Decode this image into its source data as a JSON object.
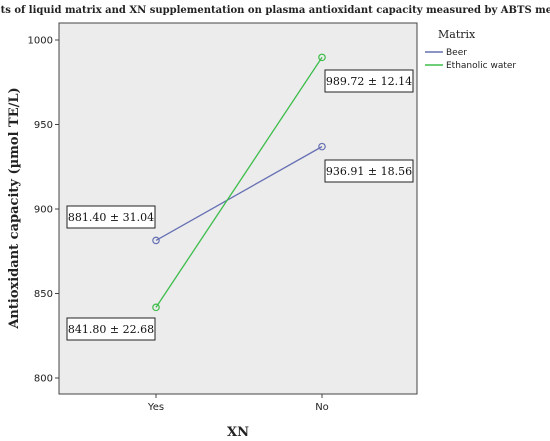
{
  "chart_data": {
    "type": "line",
    "title": "Effects of liquid matrix and XN supplementation on plasma antioxidant capacity measured by ABTS method",
    "xlabel": "XN",
    "ylabel": "Antioxidant capacity (µmol TE/L)",
    "categories": [
      "Yes",
      "No"
    ],
    "ylim": [
      790,
      1015
    ],
    "yticks": [
      800,
      850,
      900,
      950,
      1000
    ],
    "grid": false,
    "legend": {
      "title": "Matrix",
      "placement": "right"
    },
    "series": [
      {
        "name": "Beer",
        "color": "#6670b3",
        "values": [
          881.4,
          936.91
        ],
        "labels": [
          "881.40 ± 31.04",
          "936.91 ± 18.56"
        ]
      },
      {
        "name": "Ethanolic water",
        "color": "#3dbd4a",
        "values": [
          841.8,
          989.72
        ],
        "labels": [
          "841.80 ± 22.68",
          "989.72 ± 12.14"
        ]
      }
    ]
  }
}
